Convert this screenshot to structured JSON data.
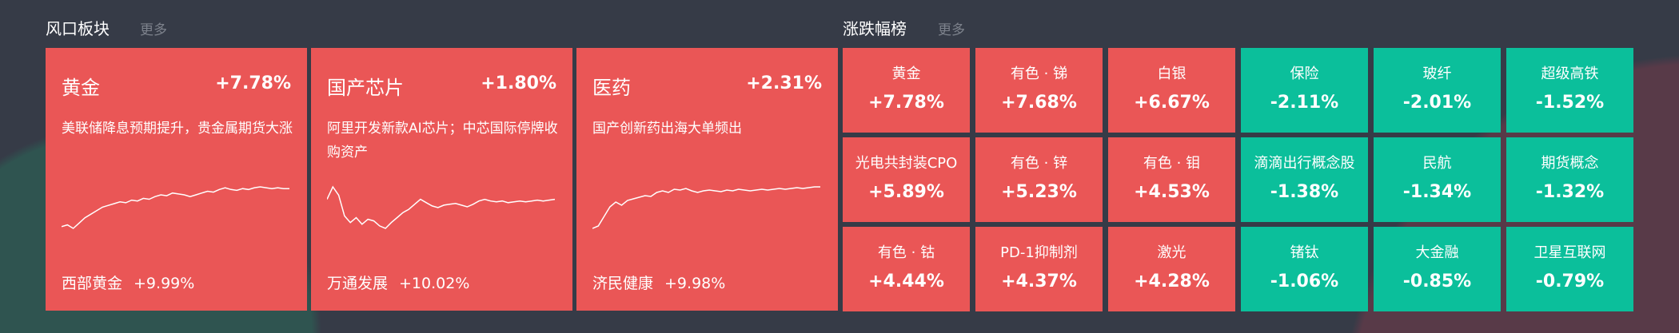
{
  "colors": {
    "up": "#ea5656",
    "down": "#0bbf9b",
    "background": "#363b47"
  },
  "hot": {
    "title": "风口板块",
    "more": "更多",
    "cards": [
      {
        "name": "黄金",
        "pct": "+7.78%",
        "desc": "美联储降息预期提升，贵金属期货大涨",
        "stock": "西部黄金",
        "stock_pct": "+9.99%",
        "spark": [
          10,
          12,
          8,
          14,
          20,
          24,
          28,
          32,
          34,
          36,
          38,
          37,
          40,
          39,
          42,
          41,
          44,
          46,
          45,
          48,
          47,
          46,
          44,
          46,
          48,
          50,
          49,
          52,
          54,
          52,
          51,
          53,
          52,
          54,
          55,
          54,
          53,
          54,
          53,
          53
        ]
      },
      {
        "name": "国产芯片",
        "pct": "+1.80%",
        "desc": "阿里开发新款AI芯片；中芯国际停牌收购资产",
        "stock": "万通发展",
        "stock_pct": "+10.02%",
        "spark": [
          40,
          55,
          45,
          20,
          12,
          18,
          10,
          16,
          14,
          8,
          5,
          12,
          18,
          24,
          28,
          34,
          40,
          36,
          32,
          30,
          33,
          34,
          35,
          33,
          31,
          34,
          38,
          40,
          38,
          37,
          38,
          36,
          37,
          38,
          37,
          38,
          39,
          38,
          39,
          40
        ]
      },
      {
        "name": "医药",
        "pct": "+2.31%",
        "desc": "国产创新药出海大单频出",
        "stock": "济民健康",
        "stock_pct": "+9.98%",
        "spark": [
          5,
          8,
          20,
          32,
          38,
          34,
          40,
          42,
          44,
          46,
          45,
          50,
          52,
          50,
          54,
          53,
          55,
          52,
          50,
          52,
          53,
          52,
          51,
          53,
          52,
          54,
          53,
          52,
          53,
          54,
          53,
          54,
          55,
          54,
          55,
          56,
          55,
          56,
          57,
          57
        ]
      }
    ]
  },
  "rank": {
    "title": "涨跌幅榜",
    "more": "更多",
    "cells": [
      {
        "name": "黄金",
        "pct": "+7.78%",
        "dir": "up"
      },
      {
        "name": "有色 · 锑",
        "pct": "+7.68%",
        "dir": "up"
      },
      {
        "name": "白银",
        "pct": "+6.67%",
        "dir": "up"
      },
      {
        "name": "保险",
        "pct": "-2.11%",
        "dir": "down"
      },
      {
        "name": "玻纤",
        "pct": "-2.01%",
        "dir": "down"
      },
      {
        "name": "超级高铁",
        "pct": "-1.52%",
        "dir": "down"
      },
      {
        "name": "光电共封装CPO",
        "pct": "+5.89%",
        "dir": "up"
      },
      {
        "name": "有色 · 锌",
        "pct": "+5.23%",
        "dir": "up"
      },
      {
        "name": "有色 · 钼",
        "pct": "+4.53%",
        "dir": "up"
      },
      {
        "name": "滴滴出行概念股",
        "pct": "-1.38%",
        "dir": "down"
      },
      {
        "name": "民航",
        "pct": "-1.34%",
        "dir": "down"
      },
      {
        "name": "期货概念",
        "pct": "-1.32%",
        "dir": "down"
      },
      {
        "name": "有色 · 钴",
        "pct": "+4.44%",
        "dir": "up"
      },
      {
        "name": "PD-1抑制剂",
        "pct": "+4.37%",
        "dir": "up"
      },
      {
        "name": "激光",
        "pct": "+4.28%",
        "dir": "up"
      },
      {
        "name": "锗钛",
        "pct": "-1.06%",
        "dir": "down"
      },
      {
        "name": "大金融",
        "pct": "-0.85%",
        "dir": "down"
      },
      {
        "name": "卫星互联网",
        "pct": "-0.79%",
        "dir": "down"
      }
    ]
  }
}
